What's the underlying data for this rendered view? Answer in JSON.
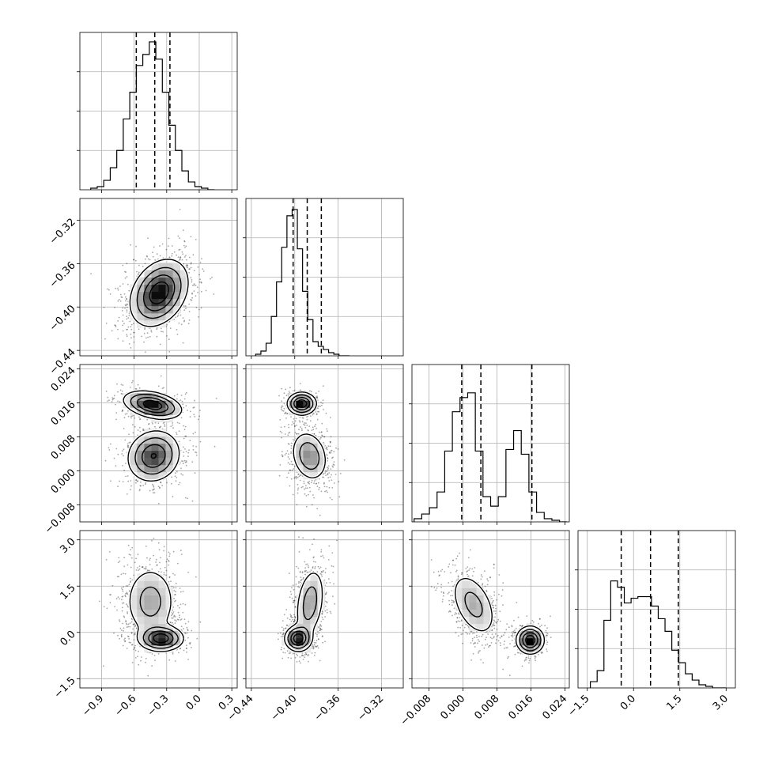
{
  "chart_data": {
    "type": "corner",
    "parameters": 4,
    "grid": true,
    "legend": "none",
    "axes": [
      {
        "range": [
          -1.1,
          0.35
        ],
        "ticks": [
          -0.9,
          -0.6,
          -0.3,
          0.0,
          0.3
        ],
        "tick_labels": [
          "−0.9",
          "−0.6",
          "−0.3",
          "0.0",
          "0.3"
        ],
        "quantiles": [
          -0.58,
          -0.41,
          -0.27
        ],
        "hist": {
          "edges_start": -1.0,
          "bin_width": 0.06,
          "counts": [
            0.01,
            0.02,
            0.06,
            0.14,
            0.25,
            0.45,
            0.62,
            0.79,
            0.86,
            0.94,
            0.83,
            0.62,
            0.41,
            0.25,
            0.12,
            0.05,
            0.02,
            0.01,
            0.0
          ]
        }
      },
      {
        "range": [
          -0.445,
          -0.3
        ],
        "ticks": [
          -0.44,
          -0.4,
          -0.36,
          -0.32
        ],
        "tick_labels": [
          "−0.44",
          "−0.40",
          "−0.36",
          "−0.32"
        ],
        "quantiles": [
          -0.4015,
          -0.3885,
          -0.3755
        ],
        "hist": {
          "edges_start": -0.436,
          "bin_width": 0.0048,
          "counts": [
            0.01,
            0.03,
            0.08,
            0.25,
            0.47,
            0.69,
            0.89,
            0.93,
            0.68,
            0.41,
            0.23,
            0.09,
            0.06,
            0.04,
            0.02,
            0.01,
            0.0,
            0.0
          ]
        }
      },
      {
        "range": [
          -0.012,
          0.025
        ],
        "ticks": [
          -0.008,
          0.0,
          0.008,
          0.016,
          0.024
        ],
        "tick_labels": [
          "−0.008",
          "0.000",
          "0.008",
          "0.016",
          "0.024"
        ],
        "quantiles": [
          -0.0003,
          0.0042,
          0.0162
        ],
        "hist": {
          "edges_start": -0.0115,
          "bin_width": 0.0018,
          "counts": [
            0.02,
            0.05,
            0.09,
            0.19,
            0.45,
            0.7,
            0.79,
            0.82,
            0.45,
            0.16,
            0.1,
            0.16,
            0.46,
            0.58,
            0.43,
            0.19,
            0.06,
            0.02,
            0.01,
            0.0
          ]
        }
      },
      {
        "range": [
          -1.8,
          3.3
        ],
        "ticks": [
          -1.5,
          0.0,
          1.5,
          3.0
        ],
        "tick_labels": [
          "−1.5",
          "0.0",
          "1.5",
          "3.0"
        ],
        "quantiles": [
          -0.4,
          0.55,
          1.45
        ],
        "hist": {
          "edges_start": -1.4,
          "bin_width": 0.22,
          "counts": [
            0.04,
            0.11,
            0.43,
            0.68,
            0.64,
            0.54,
            0.57,
            0.58,
            0.58,
            0.52,
            0.44,
            0.36,
            0.24,
            0.16,
            0.09,
            0.05,
            0.02,
            0.01,
            0.0,
            0.0
          ]
        }
      }
    ],
    "pairs": [
      {
        "row": 1,
        "col": 0,
        "modes": [
          {
            "x": -0.37,
            "y": -0.387,
            "sx": 0.13,
            "sy": 0.015,
            "rho": 0.3,
            "w": 1.0
          }
        ]
      },
      {
        "row": 2,
        "col": 0,
        "modes": [
          {
            "x": -0.42,
            "y": 0.0035,
            "sx": 0.12,
            "sy": 0.003,
            "rho": 0.1,
            "w": 0.6
          },
          {
            "x": -0.43,
            "y": 0.0155,
            "sx": 0.13,
            "sy": 0.0016,
            "rho": -0.35,
            "w": 0.4
          }
        ]
      },
      {
        "row": 2,
        "col": 1,
        "modes": [
          {
            "x": -0.3865,
            "y": 0.0035,
            "sx": 0.0085,
            "sy": 0.003,
            "rho": -0.2,
            "w": 0.6
          },
          {
            "x": -0.3935,
            "y": 0.0158,
            "sx": 0.0065,
            "sy": 0.0013,
            "rho": 0.0,
            "w": 0.4
          }
        ]
      },
      {
        "row": 3,
        "col": 0,
        "modes": [
          {
            "x": -0.45,
            "y": 1.0,
            "sx": 0.12,
            "sy": 0.6,
            "rho": 0.0,
            "w": 0.6
          },
          {
            "x": -0.35,
            "y": -0.2,
            "sx": 0.1,
            "sy": 0.2,
            "rho": 0.0,
            "w": 0.4
          }
        ]
      },
      {
        "row": 3,
        "col": 1,
        "modes": [
          {
            "x": -0.386,
            "y": 0.95,
            "sx": 0.007,
            "sy": 0.6,
            "rho": 0.3,
            "w": 0.6
          },
          {
            "x": -0.397,
            "y": -0.2,
            "sx": 0.006,
            "sy": 0.2,
            "rho": 0.0,
            "w": 0.4
          }
        ]
      },
      {
        "row": 3,
        "col": 2,
        "modes": [
          {
            "x": 0.0025,
            "y": 0.9,
            "sx": 0.0028,
            "sy": 0.55,
            "rho": -0.45,
            "w": 0.6
          },
          {
            "x": 0.0158,
            "y": -0.25,
            "sx": 0.0016,
            "sy": 0.22,
            "rho": 0.0,
            "w": 0.4
          }
        ]
      }
    ]
  }
}
